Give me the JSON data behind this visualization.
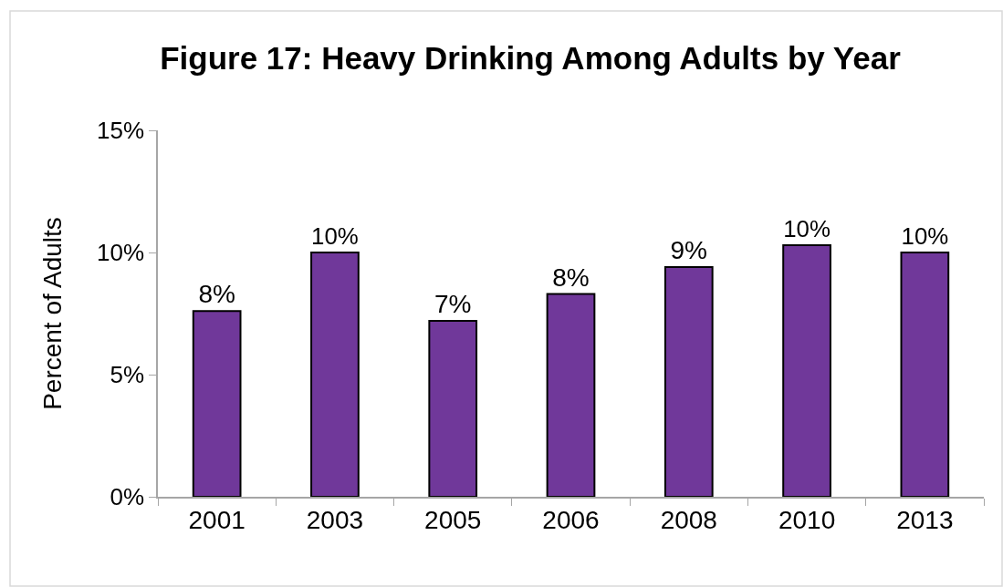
{
  "chart_data": {
    "type": "bar",
    "title": "Figure 17: Heavy Drinking Among Adults by Year",
    "ylabel": "Percent of Adults",
    "categories": [
      "2001",
      "2003",
      "2005",
      "2006",
      "2008",
      "2010",
      "2013"
    ],
    "values": [
      7.6,
      10.0,
      7.2,
      8.3,
      9.4,
      10.3,
      10.0
    ],
    "value_labels": [
      "8%",
      "10%",
      "7%",
      "8%",
      "9%",
      "10%",
      "10%"
    ],
    "color": "#70389a",
    "ylim": [
      0,
      15
    ],
    "yticks": [
      {
        "value": 0,
        "label": "0%"
      },
      {
        "value": 5,
        "label": "5%"
      },
      {
        "value": 10,
        "label": "10%"
      },
      {
        "value": 15,
        "label": "15%"
      }
    ]
  }
}
